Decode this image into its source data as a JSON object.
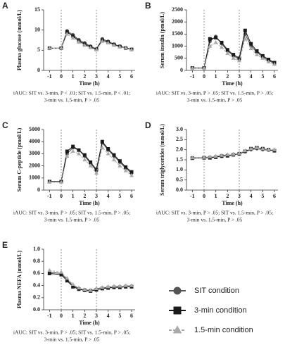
{
  "chart_data": [
    {
      "type": "line",
      "label": "A",
      "y_label": "Plasma glucose (mmol/L)",
      "x_label": "Time (h)",
      "caption": [
        "iAUC: SIT vs. 3-min, P < .01; SIT vs. 1.5-min, P < .01;",
        "3-min vs. 1.5-min, P > .05"
      ],
      "x": [
        -1,
        0,
        0.5,
        1,
        1.5,
        2,
        2.5,
        3,
        3.5,
        4,
        4.5,
        5,
        5.5,
        6
      ],
      "xlim": [
        -1.5,
        6.3
      ],
      "xticks": [
        -1,
        0,
        1,
        2,
        3,
        4,
        5,
        6
      ],
      "ylim": [
        0,
        15
      ],
      "yticks": [
        0,
        5,
        10,
        15
      ],
      "vlines": [
        0,
        3
      ],
      "series": [
        {
          "color": "#555555",
          "marker": "circle",
          "dashed": false,
          "values": [
            5.5,
            5.5,
            9.8,
            8.8,
            7.6,
            6.8,
            6.0,
            5.3,
            7.8,
            7.2,
            6.5,
            6.0,
            5.6,
            5.2
          ]
        },
        {
          "color": "#1a1a1a",
          "marker": "square",
          "dashed": false,
          "values": [
            5.5,
            5.5,
            9.5,
            8.5,
            7.3,
            6.5,
            5.8,
            5.2,
            7.5,
            7.0,
            6.4,
            5.9,
            5.5,
            5.2
          ]
        },
        {
          "color": "#aaaaaa",
          "marker": "triangle",
          "dashed": true,
          "values": [
            5.5,
            5.5,
            9.0,
            8.0,
            7.0,
            6.2,
            5.6,
            5.1,
            7.2,
            6.8,
            6.2,
            5.8,
            5.5,
            5.1
          ]
        }
      ]
    },
    {
      "type": "line",
      "label": "B",
      "y_label": "Serum insulin (pmol/L)",
      "x_label": "Time (h)",
      "caption": [
        "iAUC: SIT vs. 3-min, P > .05; SIT vs. 1.5-min, P > .05;",
        "3-min vs. 1.5-min, P > .05"
      ],
      "x": [
        -1,
        0,
        0.5,
        1,
        1.5,
        2,
        2.5,
        3,
        3.5,
        4,
        4.5,
        5,
        5.5,
        6
      ],
      "xlim": [
        -1.5,
        6.3
      ],
      "xticks": [
        -1,
        0,
        1,
        2,
        3,
        4,
        5,
        6
      ],
      "ylim": [
        0,
        2500
      ],
      "yticks": [
        0,
        500,
        1000,
        1500,
        2000,
        2500
      ],
      "vlines": [
        0,
        3
      ],
      "series": [
        {
          "color": "#555555",
          "marker": "circle",
          "dashed": false,
          "values": [
            100,
            100,
            1200,
            1400,
            1100,
            800,
            600,
            450,
            1500,
            1000,
            750,
            550,
            400,
            300
          ]
        },
        {
          "color": "#1a1a1a",
          "marker": "square",
          "dashed": false,
          "values": [
            100,
            100,
            1300,
            1350,
            1150,
            850,
            650,
            500,
            1650,
            1100,
            800,
            600,
            450,
            320
          ]
        },
        {
          "color": "#aaaaaa",
          "marker": "triangle",
          "dashed": true,
          "values": [
            90,
            90,
            1000,
            1150,
            950,
            700,
            500,
            400,
            1300,
            900,
            650,
            500,
            350,
            250
          ]
        }
      ]
    },
    {
      "type": "line",
      "label": "C",
      "y_label": "Serum C-peptide (pmol/L)",
      "x_label": "Time (h)",
      "caption": [
        "iAUC: SIT vs. 3-min, P > .05; SIT vs. 1.5-min, P > .05;",
        "3-min vs. 1.5-min, P > .05"
      ],
      "x": [
        -1,
        0,
        0.5,
        1,
        1.5,
        2,
        2.5,
        3,
        3.5,
        4,
        4.5,
        5,
        5.5,
        6
      ],
      "xlim": [
        -1.5,
        6.3
      ],
      "xticks": [
        -1,
        0,
        1,
        2,
        3,
        4,
        5,
        6
      ],
      "ylim": [
        0,
        5000
      ],
      "yticks": [
        0,
        1000,
        2000,
        3000,
        4000,
        5000
      ],
      "vlines": [
        0,
        3
      ],
      "series": [
        {
          "color": "#555555",
          "marker": "circle",
          "dashed": false,
          "values": [
            700,
            700,
            3000,
            3500,
            3300,
            2800,
            2200,
            1600,
            3900,
            3300,
            2800,
            2300,
            1800,
            1400
          ]
        },
        {
          "color": "#1a1a1a",
          "marker": "square",
          "dashed": false,
          "values": [
            700,
            700,
            3200,
            3600,
            3300,
            2900,
            2300,
            1700,
            4000,
            3400,
            2900,
            2400,
            1900,
            1500
          ]
        },
        {
          "color": "#aaaaaa",
          "marker": "triangle",
          "dashed": true,
          "values": [
            650,
            650,
            2800,
            3200,
            3000,
            2500,
            2000,
            1400,
            3500,
            3000,
            2500,
            2000,
            1600,
            1200
          ]
        }
      ]
    },
    {
      "type": "line",
      "label": "D",
      "y_label": "Serum triglycerides (mmol/L)",
      "x_label": "Time (h)",
      "caption": [
        "iAUC: SIT vs. 3-min, P > .05; SIT vs. 1.5-min, P > .05;",
        "3-min vs. 1.5-min, P > .05"
      ],
      "x": [
        -1,
        0,
        0.5,
        1,
        1.5,
        2,
        2.5,
        3,
        3.5,
        4,
        4.5,
        5,
        5.5,
        6
      ],
      "xlim": [
        -1.5,
        6.3
      ],
      "xticks": [
        -1,
        0,
        1,
        2,
        3,
        4,
        5,
        6
      ],
      "ylim": [
        0,
        3
      ],
      "yticks": [
        {
          "value": 0,
          "label": "0.0"
        },
        0.5,
        {
          "value": 1,
          "label": "1.0"
        },
        1.5,
        {
          "value": 2,
          "label": "2.0"
        },
        2.5,
        {
          "value": 3,
          "label": "3.0"
        }
      ],
      "vlines": [
        0,
        3
      ],
      "series": [
        {
          "color": "#555555",
          "marker": "circle",
          "dashed": false,
          "values": [
            1.6,
            1.6,
            1.62,
            1.65,
            1.7,
            1.72,
            1.75,
            1.8,
            1.9,
            2.0,
            2.05,
            2.0,
            1.98,
            1.95
          ]
        },
        {
          "color": "#1a1a1a",
          "marker": "square",
          "dashed": false,
          "values": [
            1.58,
            1.6,
            1.6,
            1.63,
            1.68,
            1.7,
            1.75,
            1.8,
            1.92,
            2.05,
            2.1,
            2.05,
            2.0,
            1.95
          ]
        },
        {
          "color": "#aaaaaa",
          "marker": "triangle",
          "dashed": true,
          "values": [
            1.6,
            1.62,
            1.65,
            1.68,
            1.72,
            1.75,
            1.78,
            1.82,
            1.95,
            2.05,
            2.1,
            2.05,
            2.0,
            2.0
          ]
        }
      ]
    },
    {
      "type": "line",
      "label": "E",
      "y_label": "Plasma NEFA (mmol/L)",
      "x_label": "Time (h)",
      "caption": [
        "iAUC: SIT vs. 3-min, P > .05; SIT vs. 1.5-min, P > .05;",
        "3-min vs. 1.5-min, P > .05"
      ],
      "x": [
        -1,
        0,
        0.5,
        1,
        1.5,
        2,
        2.5,
        3,
        3.5,
        4,
        4.5,
        5,
        5.5,
        6
      ],
      "xlim": [
        -1.5,
        6.3
      ],
      "xticks": [
        -1,
        0,
        1,
        2,
        3,
        4,
        5,
        6
      ],
      "ylim": [
        0,
        1
      ],
      "yticks": [
        {
          "value": 0,
          "label": "0.0"
        },
        0.2,
        0.4,
        0.6,
        0.8,
        {
          "value": 1,
          "label": "1.0"
        }
      ],
      "vlines": [
        0,
        3
      ],
      "series": [
        {
          "name": "SIT condition",
          "color": "#555555",
          "marker": "circle",
          "dashed": false,
          "values": [
            0.62,
            0.6,
            0.5,
            0.4,
            0.35,
            0.33,
            0.32,
            0.34,
            0.36,
            0.37,
            0.37,
            0.38,
            0.38,
            0.39
          ]
        },
        {
          "name": "3-min condition",
          "color": "#1a1a1a",
          "marker": "square",
          "dashed": false,
          "values": [
            0.6,
            0.58,
            0.48,
            0.38,
            0.34,
            0.32,
            0.31,
            0.33,
            0.35,
            0.36,
            0.37,
            0.37,
            0.38,
            0.38
          ]
        },
        {
          "name": "1.5-min condition",
          "color": "#aaaaaa",
          "marker": "triangle",
          "dashed": true,
          "values": [
            0.65,
            0.62,
            0.52,
            0.42,
            0.36,
            0.33,
            0.32,
            0.35,
            0.37,
            0.38,
            0.39,
            0.39,
            0.4,
            0.4
          ]
        }
      ]
    }
  ]
}
